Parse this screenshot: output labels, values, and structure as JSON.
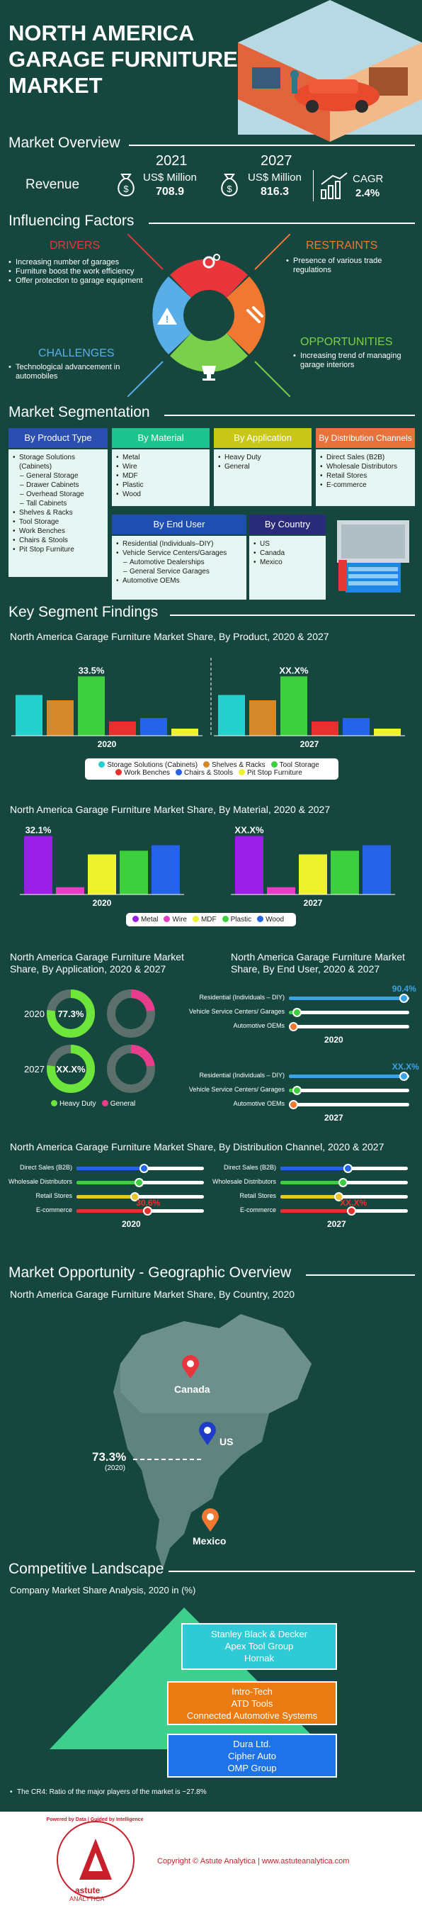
{
  "header": {
    "title_l1": "NORTH AMERICA",
    "title_l2": "GARAGE FURNITURE",
    "title_l3": "MARKET"
  },
  "overview": {
    "title": "Market Overview",
    "revenue_label": "Revenue",
    "y2021": {
      "year": "2021",
      "unit": "US$ Million",
      "value": "708.9"
    },
    "y2027": {
      "year": "2027",
      "unit": "US$ Million",
      "value": "816.3"
    },
    "cagr": {
      "label": "CAGR",
      "value": "2.4%"
    }
  },
  "factors": {
    "title": "Influencing Factors",
    "drivers": {
      "title": "DRIVERS",
      "items": [
        "Increasing number of garages",
        "Furniture boost the work efficiency",
        "Offer protection to garage equipment"
      ]
    },
    "restraints": {
      "title": "RESTRAINTS",
      "items": [
        "Presence of various trade regulations"
      ]
    },
    "challenges": {
      "title": "CHALLENGES",
      "items": [
        "Technological advancement in automobiles"
      ]
    },
    "opportunities": {
      "title": "OPPORTUNITIES",
      "items": [
        "Increasing trend of managing garage interiors"
      ]
    }
  },
  "segmentation": {
    "title": "Market Segmentation",
    "product": {
      "head": "By Product Type",
      "items": [
        {
          "t": "Storage Solutions (Cabinets)",
          "l": 1
        },
        {
          "t": "General Storage",
          "l": 2
        },
        {
          "t": "Drawer Cabinets",
          "l": 2
        },
        {
          "t": "Overhead Storage",
          "l": 2
        },
        {
          "t": "Tall Cabinets",
          "l": 2
        },
        {
          "t": "Shelves & Racks",
          "l": 1
        },
        {
          "t": "Tool Storage",
          "l": 1
        },
        {
          "t": "Work Benches",
          "l": 1
        },
        {
          "t": "Chairs & Stools",
          "l": 1
        },
        {
          "t": "Pit Stop Furniture",
          "l": 1
        }
      ]
    },
    "material": {
      "head": "By Material",
      "items": [
        {
          "t": "Metal",
          "l": 1
        },
        {
          "t": "Wire",
          "l": 1
        },
        {
          "t": "MDF",
          "l": 1
        },
        {
          "t": "Plastic",
          "l": 1
        },
        {
          "t": "Wood",
          "l": 1
        }
      ]
    },
    "application": {
      "head": "By Application",
      "items": [
        {
          "t": "Heavy Duty",
          "l": 1
        },
        {
          "t": "General",
          "l": 1
        }
      ]
    },
    "distribution": {
      "head": "By Distribution Channels",
      "items": [
        {
          "t": "Direct Sales (B2B)",
          "l": 1
        },
        {
          "t": "Wholesale Distributors",
          "l": 1
        },
        {
          "t": "Retail Stores",
          "l": 1
        },
        {
          "t": "E-commerce",
          "l": 1
        }
      ]
    },
    "enduser": {
      "head": "By End User",
      "items": [
        {
          "t": "Residential (Individuals–DIY)",
          "l": 1
        },
        {
          "t": "Vehicle Service Centers/Garages",
          "l": 1
        },
        {
          "t": "Automotive Dealerships",
          "l": 2
        },
        {
          "t": "General Service Garages",
          "l": 2
        },
        {
          "t": "Automotive OEMs",
          "l": 1
        }
      ]
    },
    "country": {
      "head": "By Country",
      "items": [
        {
          "t": "US",
          "l": 1
        },
        {
          "t": "Canada",
          "l": 1
        },
        {
          "t": "Mexico",
          "l": 1
        }
      ]
    }
  },
  "findings": {
    "title": "Key Segment Findings",
    "product_chart_title": "North America Garage Furniture Market Share, By Product, 2020 & 2027",
    "material_chart_title": "North America Garage Furniture Market Share, By Material, 2020 & 2027",
    "application_title_l1": "North America Garage Furniture Market",
    "application_title_l2": "Share, By Application, 2020 & 2027",
    "enduser_title_l1": "North America Garage Furniture Market",
    "enduser_title_l2": "Share, By End User, 2020 & 2027",
    "distribution_title": "North America Garage Furniture Market Share, By Distribution Channel, 2020 & 2027"
  },
  "chart_data": [
    {
      "type": "bar",
      "title": "North America Garage Furniture Market Share, By Product, 2020 & 2027",
      "categories": [
        "Storage Solutions (Cabinets)",
        "Shelves & Racks",
        "Tool Storage",
        "Work Benches",
        "Chairs & Stools",
        "Pit Stop Furniture"
      ],
      "colors": [
        "#26d0ce",
        "#d4882a",
        "#3ecf3e",
        "#e8312f",
        "#2563eb",
        "#eef22e"
      ],
      "series": [
        {
          "name": "2020",
          "values": [
            23,
            20,
            33.5,
            8,
            10,
            4
          ],
          "label": "33.5%",
          "label_index": 2
        },
        {
          "name": "2027",
          "values": [
            23,
            20,
            33.5,
            8,
            10,
            4
          ],
          "label": "XX.X%",
          "label_index": 2
        }
      ],
      "ylim": [
        0,
        40
      ]
    },
    {
      "type": "bar",
      "title": "North America Garage Furniture Market Share, By Material, 2020 & 2027",
      "categories": [
        "Metal",
        "Wire",
        "MDF",
        "Plastic",
        "Wood"
      ],
      "colors": [
        "#9b1fe8",
        "#e93cc4",
        "#eef22e",
        "#3ecf3e",
        "#2563eb"
      ],
      "series": [
        {
          "name": "2020",
          "values": [
            32.1,
            4,
            22,
            24,
            27
          ],
          "label": "32.1%",
          "label_index": 0
        },
        {
          "name": "2027",
          "values": [
            32.1,
            4,
            22,
            24,
            27
          ],
          "label": "XX.X%",
          "label_index": 0
        }
      ],
      "ylim": [
        0,
        35
      ]
    },
    {
      "type": "pie",
      "title": "By Application",
      "categories": [
        "Heavy Duty",
        "General"
      ],
      "colors": [
        "#6ee53a",
        "#e93c8c"
      ],
      "series": [
        {
          "name": "2020",
          "values": [
            77.3,
            22.7
          ],
          "label": "77.3%"
        },
        {
          "name": "2027",
          "values": [
            77.3,
            22.7
          ],
          "label": "XX.X%"
        }
      ]
    },
    {
      "type": "bar",
      "title": "By End User",
      "categories": [
        "Residential (Individuals – DIY)",
        "Vehicle Service Centers/ Garages",
        "Automotive OEMs"
      ],
      "colors": [
        "#3aa3e8",
        "#3ecf3e",
        "#f07830"
      ],
      "series": [
        {
          "name": "2020",
          "values": [
            90.4,
            6,
            3.6
          ],
          "label": "90.4%"
        },
        {
          "name": "2027",
          "values": [
            90.4,
            6,
            3.6
          ],
          "label": "XX.X%"
        }
      ]
    },
    {
      "type": "bar",
      "title": "By Distribution Channel",
      "categories": [
        "Direct Sales (B2B)",
        "Wholesale Distributors",
        "Retail Stores",
        "E-commerce"
      ],
      "colors": [
        "#2563eb",
        "#3ecf3e",
        "#eec42e",
        "#e8312f"
      ],
      "series": [
        {
          "name": "2020",
          "values": [
            29,
            27,
            25,
            30.6
          ],
          "label": "30.6%"
        },
        {
          "name": "2027",
          "values": [
            29,
            27,
            25,
            30.6
          ],
          "label": "XX.X%"
        }
      ]
    }
  ],
  "geo": {
    "title": "Market Opportunity - Geographic Overview",
    "subtitle": "North America Garage Furniture Market Share, By Country, 2020",
    "canada": "Canada",
    "us": "US",
    "mexico": "Mexico",
    "us_share": "73.3%",
    "us_year": "(2020)"
  },
  "competitive": {
    "title": "Competitive Landscape",
    "subtitle": "Company Market Share Analysis, 2020 in  (%)",
    "tier1": [
      "Stanley Black & Decker",
      "Apex Tool Group",
      "Hornak"
    ],
    "tier2": [
      "Intro-Tech",
      "ATD Tools",
      "Connected Automotive Systems"
    ],
    "tier3": [
      "Dura Ltd.",
      "Cipher Auto",
      "OMP Group"
    ],
    "note": "The CR4: Ratio of the major players of the market is ~27.8%"
  },
  "footer": {
    "copyright": "Copyright © Astute Analytica  |  www.astuteanalytica.com",
    "logo_text": "astute",
    "logo_sub": "ANALYTICA",
    "seal_text": "Powered by Data | Guided by Intelligence"
  }
}
